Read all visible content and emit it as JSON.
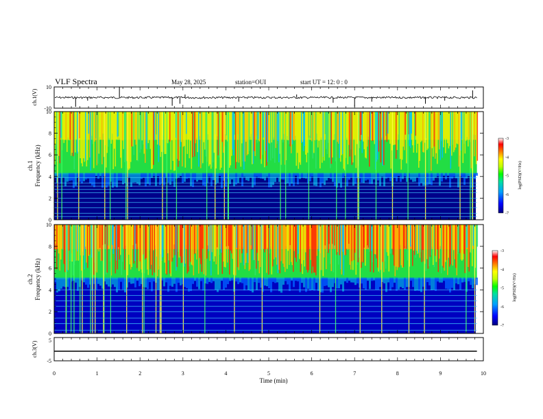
{
  "header": {
    "title": "VLF Spectra",
    "date": "May 28, 2025",
    "station": "station=OUI",
    "start_ut": "start  UT  =   12: 0   : 0"
  },
  "chart_data": [
    {
      "type": "line",
      "name": "ch1-waveform",
      "ylabel": "ch.1(V)",
      "ylim": [
        -10,
        10
      ],
      "ytick_labels": [
        "10",
        "-10"
      ],
      "x_range_min": [
        0,
        9.85
      ],
      "baseline_v": 0,
      "spikes": [
        {
          "x": 0.5,
          "y": -9
        },
        {
          "x": 0.78,
          "y": -3
        },
        {
          "x": 1.52,
          "y": 10
        },
        {
          "x": 2.75,
          "y": -8
        },
        {
          "x": 2.93,
          "y": -6
        },
        {
          "x": 3.05,
          "y": 3
        },
        {
          "x": 4.3,
          "y": -4
        },
        {
          "x": 5.65,
          "y": 3
        },
        {
          "x": 6.5,
          "y": -5
        },
        {
          "x": 7.0,
          "y": -9
        },
        {
          "x": 7.4,
          "y": -4
        },
        {
          "x": 8.65,
          "y": -6
        },
        {
          "x": 9.1,
          "y": -3
        },
        {
          "x": 9.75,
          "y": 7
        }
      ]
    },
    {
      "type": "heatmap",
      "name": "ch1-spectrogram",
      "ylabel": "Frequency (kHz)",
      "ylabel_prefix": "ch.1",
      "ylim": [
        0,
        10
      ],
      "yticks": [
        "0",
        "2",
        "4",
        "6",
        "8",
        "10"
      ],
      "x_range_min": [
        0,
        9.85
      ],
      "colorscale": [
        "#000080",
        "#0000ff",
        "#00a0ff",
        "#00e0a0",
        "#00ff00",
        "#c0ff00",
        "#ffff00",
        "#ff8000",
        "#ff0000",
        "#ffffff"
      ],
      "color_range": [
        -7,
        -3
      ],
      "colorbar_ticks": [
        "-3",
        "-4",
        "-5",
        "-6",
        "-7"
      ],
      "colorbar_label": "log(PSD)(V²/Hz)",
      "noise_floor_khz": 4.2,
      "interference_lines_khz": [
        0.3,
        0.6,
        1.1,
        1.6,
        2.0,
        2.5,
        2.8,
        3.1,
        3.4,
        3.9
      ]
    },
    {
      "type": "heatmap",
      "name": "ch2-spectrogram",
      "ylabel": "Frequency (kHz)",
      "ylabel_prefix": "ch.2",
      "ylim": [
        0,
        10
      ],
      "yticks": [
        "0",
        "2",
        "4",
        "6",
        "8",
        "10"
      ],
      "x_range_min": [
        0,
        9.85
      ],
      "colorscale": [
        "#000080",
        "#0000ff",
        "#00a0ff",
        "#00e0a0",
        "#00ff00",
        "#c0ff00",
        "#ffff00",
        "#ff8000",
        "#ff0000",
        "#ffffff"
      ],
      "color_range": [
        -7,
        -3
      ],
      "colorbar_ticks": [
        "-3",
        "-4",
        "-5",
        "-6",
        "-7"
      ],
      "colorbar_label": "log(PSD)(V²/Hz)",
      "noise_floor_khz": 5.0,
      "interference_lines_khz": [
        0.3,
        0.9,
        1.4,
        2.0,
        2.5,
        3.0,
        3.5,
        4.0
      ]
    },
    {
      "type": "line",
      "name": "ch3-waveform",
      "ylabel": "ch.3(V)",
      "ylim": [
        -5,
        5
      ],
      "ytick_labels": [
        "5",
        "-5"
      ],
      "x_range_min": [
        0,
        9.85
      ],
      "constant_v": -1
    }
  ],
  "xaxis": {
    "label": "Time (min)",
    "range": [
      0,
      10
    ],
    "ticks": [
      "0",
      "1",
      "2",
      "3",
      "4",
      "5",
      "6",
      "7",
      "8",
      "9",
      "10"
    ]
  }
}
